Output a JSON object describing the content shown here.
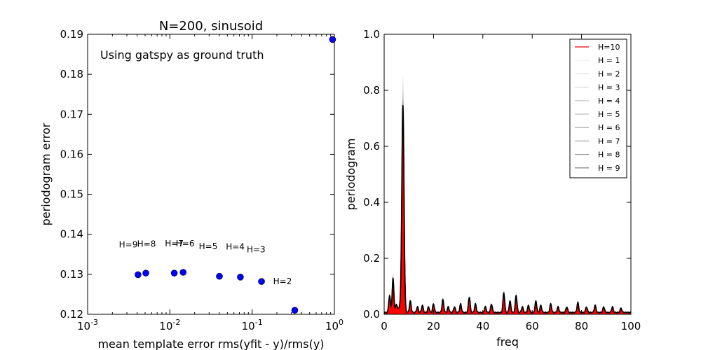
{
  "chart_data": [
    {
      "type": "scatter",
      "title": "N=200, sinusoid",
      "xlabel": "mean template error rms(yfit - y)/rms(y)",
      "ylabel": "periodogram error",
      "xscale": "log",
      "xlim": [
        0.001,
        1
      ],
      "ylim": [
        0.12,
        0.19
      ],
      "x_tick_labels": [
        "10^-3",
        "10^-2",
        "10^-1",
        "10^0"
      ],
      "y_tick_labels": [
        "0.12",
        "0.13",
        "0.14",
        "0.15",
        "0.16",
        "0.17",
        "0.18",
        "0.19"
      ],
      "y_ticks": [
        0.12,
        0.13,
        0.14,
        0.15,
        0.16,
        0.17,
        0.18,
        0.19
      ],
      "annotation": "Using gatspy as ground truth",
      "marker_color": "#0000ff",
      "points": [
        {
          "x": 0.95,
          "y": 0.1887
        },
        {
          "x": 0.33,
          "y": 0.121
        },
        {
          "x": 0.13,
          "y": 0.1282
        },
        {
          "x": 0.072,
          "y": 0.1293
        },
        {
          "x": 0.04,
          "y": 0.1295
        },
        {
          "x": 0.0145,
          "y": 0.1305
        },
        {
          "x": 0.0113,
          "y": 0.1303
        },
        {
          "x": 0.0051,
          "y": 0.1303
        },
        {
          "x": 0.0041,
          "y": 0.1299
        }
      ],
      "point_labels": [
        {
          "text": "H=2",
          "x": 0.18,
          "y": 0.1275
        },
        {
          "text": "H=3",
          "x": 0.086,
          "y": 0.1355
        },
        {
          "text": "H=4",
          "x": 0.048,
          "y": 0.1362
        },
        {
          "text": "H=5",
          "x": 0.0225,
          "y": 0.1363
        },
        {
          "text": "H=6",
          "x": 0.0118,
          "y": 0.137
        },
        {
          "text": "H=7",
          "x": 0.0087,
          "y": 0.137
        },
        {
          "text": "H=8",
          "x": 0.004,
          "y": 0.1369
        },
        {
          "text": "H=9",
          "x": 0.0024,
          "y": 0.1367
        }
      ]
    },
    {
      "type": "line",
      "xlabel": "freq",
      "ylabel": "periodogram",
      "xlim": [
        0,
        100
      ],
      "ylim": [
        0,
        1
      ],
      "x_ticks": [
        0,
        20,
        40,
        60,
        80,
        100
      ],
      "x_tick_labels": [
        "0",
        "20",
        "40",
        "60",
        "80",
        "100"
      ],
      "y_ticks": [
        0,
        0.2,
        0.4,
        0.6,
        0.8,
        1.0
      ],
      "y_tick_labels": [
        "0.0",
        "0.2",
        "0.4",
        "0.6",
        "0.8",
        "1.0"
      ],
      "legend_position": "top-right",
      "peaks": [
        {
          "f": 2.2,
          "h": 0.06
        },
        {
          "f": 3.6,
          "h": 0.12
        },
        {
          "f": 5.0,
          "h": 0.03
        },
        {
          "f": 6.2,
          "h": 0.02
        },
        {
          "f": 7.6,
          "h": 0.74
        },
        {
          "f": 10.6,
          "h": 0.04
        },
        {
          "f": 13.5,
          "h": 0.02
        },
        {
          "f": 15.5,
          "h": 0.025
        },
        {
          "f": 18.0,
          "h": 0.02
        },
        {
          "f": 20.0,
          "h": 0.03
        },
        {
          "f": 23.8,
          "h": 0.045
        },
        {
          "f": 26.0,
          "h": 0.02
        },
        {
          "f": 28.5,
          "h": 0.02
        },
        {
          "f": 31.0,
          "h": 0.03
        },
        {
          "f": 34.5,
          "h": 0.055
        },
        {
          "f": 37.0,
          "h": 0.03
        },
        {
          "f": 41.0,
          "h": 0.02
        },
        {
          "f": 43.5,
          "h": 0.03
        },
        {
          "f": 48.5,
          "h": 0.07
        },
        {
          "f": 51.0,
          "h": 0.04
        },
        {
          "f": 53.5,
          "h": 0.06
        },
        {
          "f": 56.0,
          "h": 0.02
        },
        {
          "f": 58.5,
          "h": 0.025
        },
        {
          "f": 61.5,
          "h": 0.04
        },
        {
          "f": 63.5,
          "h": 0.025
        },
        {
          "f": 67.5,
          "h": 0.03
        },
        {
          "f": 70.5,
          "h": 0.02
        },
        {
          "f": 74.0,
          "h": 0.02
        },
        {
          "f": 78.5,
          "h": 0.035
        },
        {
          "f": 82.0,
          "h": 0.02
        },
        {
          "f": 85.5,
          "h": 0.025
        },
        {
          "f": 89.0,
          "h": 0.02
        },
        {
          "f": 92.5,
          "h": 0.02
        },
        {
          "f": 96.0,
          "h": 0.015
        }
      ],
      "series": [
        {
          "name": "H=10",
          "color": "#ff0000"
        },
        {
          "name": "H = 1",
          "color": "#f2f2f2"
        },
        {
          "name": "H = 2",
          "color": "#e6e6e6"
        },
        {
          "name": "H = 3",
          "color": "#d9d9d9"
        },
        {
          "name": "H = 4",
          "color": "#cccccc"
        },
        {
          "name": "H = 5",
          "color": "#bfbfbf"
        },
        {
          "name": "H = 6",
          "color": "#b3b3b3"
        },
        {
          "name": "H = 7",
          "color": "#a6a6a6"
        },
        {
          "name": "H = 8",
          "color": "#999999"
        },
        {
          "name": "H = 9",
          "color": "#8c8c8c"
        }
      ]
    }
  ]
}
